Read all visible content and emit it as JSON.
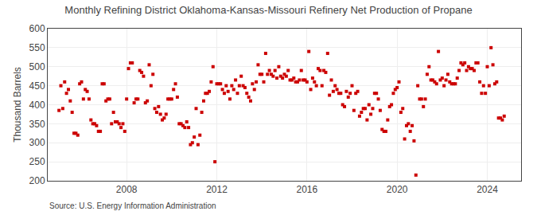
{
  "chart_data": {
    "type": "scatter",
    "title": "Monthly Refining District Oklahoma-Kansas-Missouri Refinery Net Production of Propane",
    "ylabel": "Thousand Barrels",
    "annotations": [
      "Source: U.S. Energy Information Administration"
    ],
    "color": "#cc0000",
    "marker": "square",
    "grid": true,
    "xlim": [
      2004.5,
      2025.5
    ],
    "xticks": [
      2008,
      2012,
      2016,
      2020,
      2024
    ],
    "ylim": [
      200,
      600
    ],
    "yticks": [
      200,
      250,
      300,
      350,
      400,
      450,
      500,
      550,
      600
    ],
    "x": [
      2005.0,
      2005.083,
      2005.167,
      2005.25,
      2005.333,
      2005.417,
      2005.5,
      2005.583,
      2005.667,
      2005.75,
      2005.833,
      2005.917,
      2006.0,
      2006.083,
      2006.167,
      2006.25,
      2006.333,
      2006.417,
      2006.5,
      2006.583,
      2006.667,
      2006.75,
      2006.833,
      2006.917,
      2007.0,
      2007.083,
      2007.167,
      2007.25,
      2007.333,
      2007.417,
      2007.5,
      2007.583,
      2007.667,
      2007.75,
      2007.833,
      2007.917,
      2008.0,
      2008.083,
      2008.167,
      2008.25,
      2008.333,
      2008.417,
      2008.5,
      2008.583,
      2008.667,
      2008.75,
      2008.833,
      2008.917,
      2009.0,
      2009.083,
      2009.167,
      2009.25,
      2009.333,
      2009.417,
      2009.5,
      2009.583,
      2009.667,
      2009.75,
      2009.833,
      2009.917,
      2010.0,
      2010.083,
      2010.167,
      2010.25,
      2010.333,
      2010.417,
      2010.5,
      2010.583,
      2010.667,
      2010.75,
      2010.833,
      2010.917,
      2011.0,
      2011.083,
      2011.167,
      2011.25,
      2011.333,
      2011.417,
      2011.5,
      2011.583,
      2011.667,
      2011.75,
      2011.833,
      2011.917,
      2012.0,
      2012.083,
      2012.167,
      2012.25,
      2012.333,
      2012.417,
      2012.5,
      2012.583,
      2012.667,
      2012.75,
      2012.833,
      2012.917,
      2013.0,
      2013.083,
      2013.167,
      2013.25,
      2013.333,
      2013.417,
      2013.5,
      2013.583,
      2013.667,
      2013.75,
      2013.833,
      2013.917,
      2014.0,
      2014.083,
      2014.167,
      2014.25,
      2014.333,
      2014.417,
      2014.5,
      2014.583,
      2014.667,
      2014.75,
      2014.833,
      2014.917,
      2015.0,
      2015.083,
      2015.167,
      2015.25,
      2015.333,
      2015.417,
      2015.5,
      2015.583,
      2015.667,
      2015.75,
      2015.833,
      2015.917,
      2016.0,
      2016.083,
      2016.167,
      2016.25,
      2016.333,
      2016.417,
      2016.5,
      2016.583,
      2016.667,
      2016.75,
      2016.833,
      2016.917,
      2017.0,
      2017.083,
      2017.167,
      2017.25,
      2017.333,
      2017.417,
      2017.5,
      2017.583,
      2017.667,
      2017.75,
      2017.833,
      2017.917,
      2018.0,
      2018.083,
      2018.167,
      2018.25,
      2018.333,
      2018.417,
      2018.5,
      2018.583,
      2018.667,
      2018.75,
      2018.833,
      2018.917,
      2019.0,
      2019.083,
      2019.167,
      2019.25,
      2019.333,
      2019.417,
      2019.5,
      2019.583,
      2019.667,
      2019.75,
      2019.833,
      2019.917,
      2020.0,
      2020.083,
      2020.167,
      2020.25,
      2020.333,
      2020.417,
      2020.5,
      2020.583,
      2020.667,
      2020.75,
      2020.833,
      2020.917,
      2021.0,
      2021.083,
      2021.167,
      2021.25,
      2021.333,
      2021.417,
      2021.5,
      2021.583,
      2021.667,
      2021.75,
      2021.833,
      2021.917,
      2022.0,
      2022.083,
      2022.167,
      2022.25,
      2022.333,
      2022.417,
      2022.5,
      2022.583,
      2022.667,
      2022.75,
      2022.833,
      2022.917,
      2023.0,
      2023.083,
      2023.167,
      2023.25,
      2023.333,
      2023.417,
      2023.5,
      2023.583,
      2023.667,
      2023.75,
      2023.833,
      2023.917,
      2024.0,
      2024.083,
      2024.167,
      2024.25,
      2024.333,
      2024.417,
      2024.5,
      2024.583,
      2024.667,
      2024.75
    ],
    "values": [
      385,
      450,
      390,
      460,
      430,
      440,
      410,
      380,
      325,
      325,
      320,
      455,
      460,
      415,
      440,
      435,
      415,
      360,
      350,
      350,
      345,
      330,
      330,
      455,
      455,
      410,
      415,
      415,
      350,
      380,
      355,
      355,
      350,
      340,
      350,
      330,
      415,
      495,
      510,
      510,
      405,
      415,
      415,
      490,
      485,
      475,
      405,
      410,
      505,
      450,
      480,
      390,
      380,
      395,
      375,
      360,
      365,
      375,
      415,
      415,
      415,
      440,
      455,
      420,
      350,
      350,
      345,
      340,
      355,
      340,
      295,
      300,
      315,
      390,
      295,
      320,
      380,
      410,
      430,
      430,
      435,
      460,
      500,
      250,
      455,
      455,
      455,
      440,
      430,
      450,
      435,
      415,
      450,
      440,
      465,
      430,
      450,
      475,
      450,
      445,
      430,
      420,
      410,
      455,
      440,
      460,
      505,
      480,
      480,
      460,
      535,
      480,
      490,
      480,
      475,
      490,
      470,
      500,
      475,
      470,
      480,
      475,
      490,
      465,
      465,
      470,
      460,
      460,
      465,
      490,
      465,
      465,
      460,
      540,
      440,
      470,
      460,
      450,
      495,
      490,
      450,
      490,
      485,
      535,
      425,
      465,
      435,
      450,
      440,
      430,
      430,
      400,
      395,
      435,
      420,
      430,
      450,
      385,
      430,
      435,
      370,
      380,
      390,
      390,
      360,
      400,
      375,
      390,
      430,
      430,
      415,
      385,
      335,
      330,
      330,
      360,
      395,
      400,
      430,
      440,
      445,
      460,
      380,
      390,
      310,
      345,
      350,
      330,
      345,
      305,
      215,
      450,
      415,
      415,
      395,
      415,
      480,
      500,
      465,
      465,
      460,
      455,
      540,
      465,
      470,
      450,
      465,
      480,
      460,
      455,
      455,
      455,
      470,
      490,
      510,
      505,
      510,
      490,
      500,
      495,
      495,
      490,
      510,
      510,
      460,
      430,
      450,
      430,
      500,
      450,
      550,
      505,
      455,
      460,
      365,
      365,
      360,
      370
    ]
  }
}
